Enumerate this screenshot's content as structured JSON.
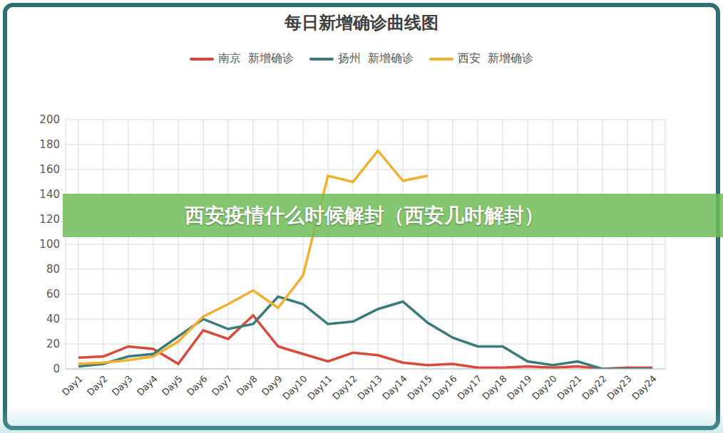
{
  "chart_data": {
    "type": "line",
    "title": "每日新增确诊曲线图",
    "annotations": [
      "西安疫情什么时候解封（西安几时解封）"
    ],
    "categories": [
      "Day1",
      "Day2",
      "Day3",
      "Day4",
      "Day5",
      "Day6",
      "Day7",
      "Day8",
      "Day9",
      "Day10",
      "Day11",
      "Day12",
      "Day13",
      "Day14",
      "Day15",
      "Day16",
      "Day17",
      "Day18",
      "Day19",
      "Day20",
      "Day21",
      "Day22",
      "Day23",
      "Day24"
    ],
    "series": [
      {
        "name": "南京  新增确诊",
        "color": "#d9493a",
        "values": [
          9,
          10,
          18,
          16,
          4,
          31,
          24,
          43,
          18,
          12,
          6,
          13,
          11,
          5,
          3,
          4,
          1,
          1,
          2,
          1,
          2,
          0,
          1,
          1
        ]
      },
      {
        "name": "扬州  新增确诊",
        "color": "#3a7a78",
        "values": [
          2,
          4,
          10,
          12,
          26,
          40,
          32,
          36,
          58,
          52,
          36,
          38,
          48,
          54,
          37,
          25,
          18,
          18,
          6,
          3,
          6,
          0,
          0,
          0
        ]
      },
      {
        "name": "西安  新增确诊",
        "color": "#f0b030",
        "values": [
          4,
          5,
          7,
          10,
          22,
          42,
          52,
          63,
          49,
          75,
          155,
          150,
          175,
          151,
          155,
          null,
          null,
          null,
          null,
          null,
          null,
          null,
          null,
          null
        ]
      }
    ],
    "ylim": [
      0,
      200
    ],
    "yticks": [
      0,
      20,
      40,
      60,
      80,
      100,
      120,
      140,
      160,
      180,
      200
    ],
    "grid": true,
    "legend": "top"
  }
}
